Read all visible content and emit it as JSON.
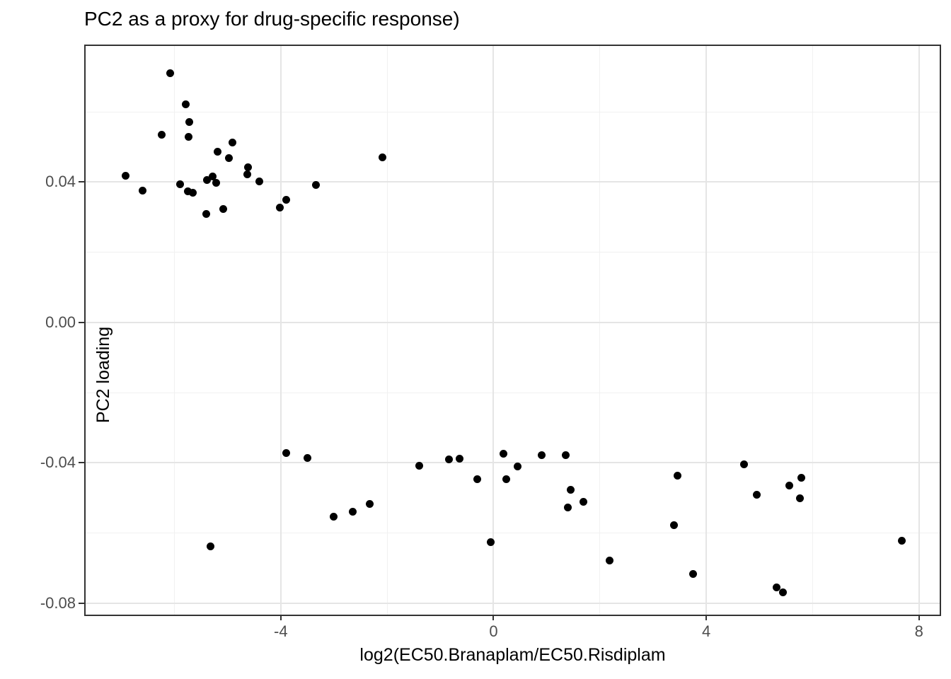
{
  "title": "PC2 as a proxy for drug-specific response)",
  "colors": {
    "background": "#ffffff",
    "panel_border": "#333333",
    "grid_major": "#e5e5e5",
    "grid_minor": "#f1f1f1",
    "tick_mark": "#333333",
    "tick_label": "#4d4d4d",
    "point": "#000000",
    "text": "#000000"
  },
  "chart_data": {
    "type": "scatter",
    "title": "PC2 as a proxy for drug-specific response)",
    "xlabel": "log2(EC50.Branaplam/EC50.Risdiplam",
    "ylabel": "PC2 loading",
    "xlim": [
      -7.67,
      8.39
    ],
    "ylim": [
      -0.0833,
      0.0788
    ],
    "x_ticks": [
      -4,
      0,
      4,
      8
    ],
    "x_tick_labels": [
      "-4",
      "0",
      "4",
      "8"
    ],
    "y_ticks": [
      0.04,
      0.0,
      -0.04,
      -0.08
    ],
    "y_tick_labels": [
      "0.04",
      "0.00",
      "-0.04",
      "-0.08"
    ],
    "x_minor_ticks": [
      -6,
      -2,
      2,
      6
    ],
    "y_minor_ticks": [
      0.06,
      0.02,
      -0.02,
      -0.06
    ],
    "grid": true,
    "legend": false,
    "point_color": "#000000",
    "points": [
      [
        -6.11,
        0.0714
      ],
      [
        -5.82,
        0.0625
      ],
      [
        -5.75,
        0.0575
      ],
      [
        -6.26,
        0.0539
      ],
      [
        -5.76,
        0.0532
      ],
      [
        -4.94,
        0.0517
      ],
      [
        -5.21,
        0.049
      ],
      [
        -5.0,
        0.0473
      ],
      [
        -4.64,
        0.0446
      ],
      [
        -4.65,
        0.0426
      ],
      [
        -4.43,
        0.0406
      ],
      [
        -6.95,
        0.0422
      ],
      [
        -6.63,
        0.0379
      ],
      [
        -5.92,
        0.0397
      ],
      [
        -5.77,
        0.0378
      ],
      [
        -5.68,
        0.0374
      ],
      [
        -5.31,
        0.0421
      ],
      [
        -5.42,
        0.0409
      ],
      [
        -5.24,
        0.0401
      ],
      [
        -5.43,
        0.0314
      ],
      [
        -5.11,
        0.0328
      ],
      [
        -4.05,
        0.0331
      ],
      [
        -3.92,
        0.0354
      ],
      [
        -3.37,
        0.0395
      ],
      [
        -2.12,
        0.0475
      ],
      [
        -5.35,
        -0.0635
      ],
      [
        -3.93,
        -0.0368
      ],
      [
        -3.53,
        -0.0383
      ],
      [
        -3.03,
        -0.055
      ],
      [
        -2.67,
        -0.0535
      ],
      [
        -2.36,
        -0.0513
      ],
      [
        -1.42,
        -0.0404
      ],
      [
        -0.86,
        -0.0386
      ],
      [
        -0.67,
        -0.0385
      ],
      [
        -0.33,
        -0.0442
      ],
      [
        0.16,
        -0.037
      ],
      [
        0.42,
        -0.0406
      ],
      [
        0.22,
        -0.0442
      ],
      [
        0.88,
        -0.0374
      ],
      [
        1.33,
        -0.0374
      ],
      [
        1.42,
        -0.0474
      ],
      [
        1.37,
        -0.0523
      ],
      [
        1.66,
        -0.0507
      ],
      [
        -0.08,
        -0.0622
      ],
      [
        2.15,
        -0.0675
      ],
      [
        3.43,
        -0.0432
      ],
      [
        3.37,
        -0.0574
      ],
      [
        3.72,
        -0.0713
      ],
      [
        4.69,
        -0.04
      ],
      [
        4.92,
        -0.0487
      ],
      [
        5.54,
        -0.0461
      ],
      [
        5.76,
        -0.0439
      ],
      [
        5.74,
        -0.0498
      ],
      [
        5.3,
        -0.0751
      ],
      [
        5.41,
        -0.0765
      ],
      [
        7.65,
        -0.0619
      ]
    ]
  }
}
